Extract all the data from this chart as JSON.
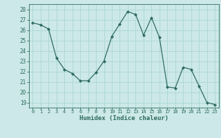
{
  "x": [
    0,
    1,
    2,
    3,
    4,
    5,
    6,
    7,
    8,
    9,
    10,
    11,
    12,
    13,
    14,
    15,
    16,
    17,
    18,
    19,
    20,
    21,
    22,
    23
  ],
  "y": [
    26.7,
    26.5,
    26.1,
    23.3,
    22.2,
    21.8,
    21.1,
    21.1,
    21.9,
    23.0,
    25.4,
    26.6,
    27.8,
    27.5,
    25.5,
    27.2,
    25.3,
    20.5,
    20.4,
    22.4,
    22.2,
    20.6,
    19.0,
    18.8
  ],
  "line_color": "#2d6b5e",
  "marker": "D",
  "marker_size": 2.2,
  "bg_color": "#cce8e8",
  "grid_color": "#b0d8d8",
  "xlabel": "Humidex (Indice chaleur)",
  "ylabel_ticks": [
    19,
    20,
    21,
    22,
    23,
    24,
    25,
    26,
    27,
    28
  ],
  "xticks": [
    0,
    1,
    2,
    3,
    4,
    5,
    6,
    7,
    8,
    9,
    10,
    11,
    12,
    13,
    14,
    15,
    16,
    17,
    18,
    19,
    20,
    21,
    22,
    23
  ],
  "ylim": [
    18.5,
    28.5
  ],
  "xlim": [
    -0.5,
    23.5
  ]
}
